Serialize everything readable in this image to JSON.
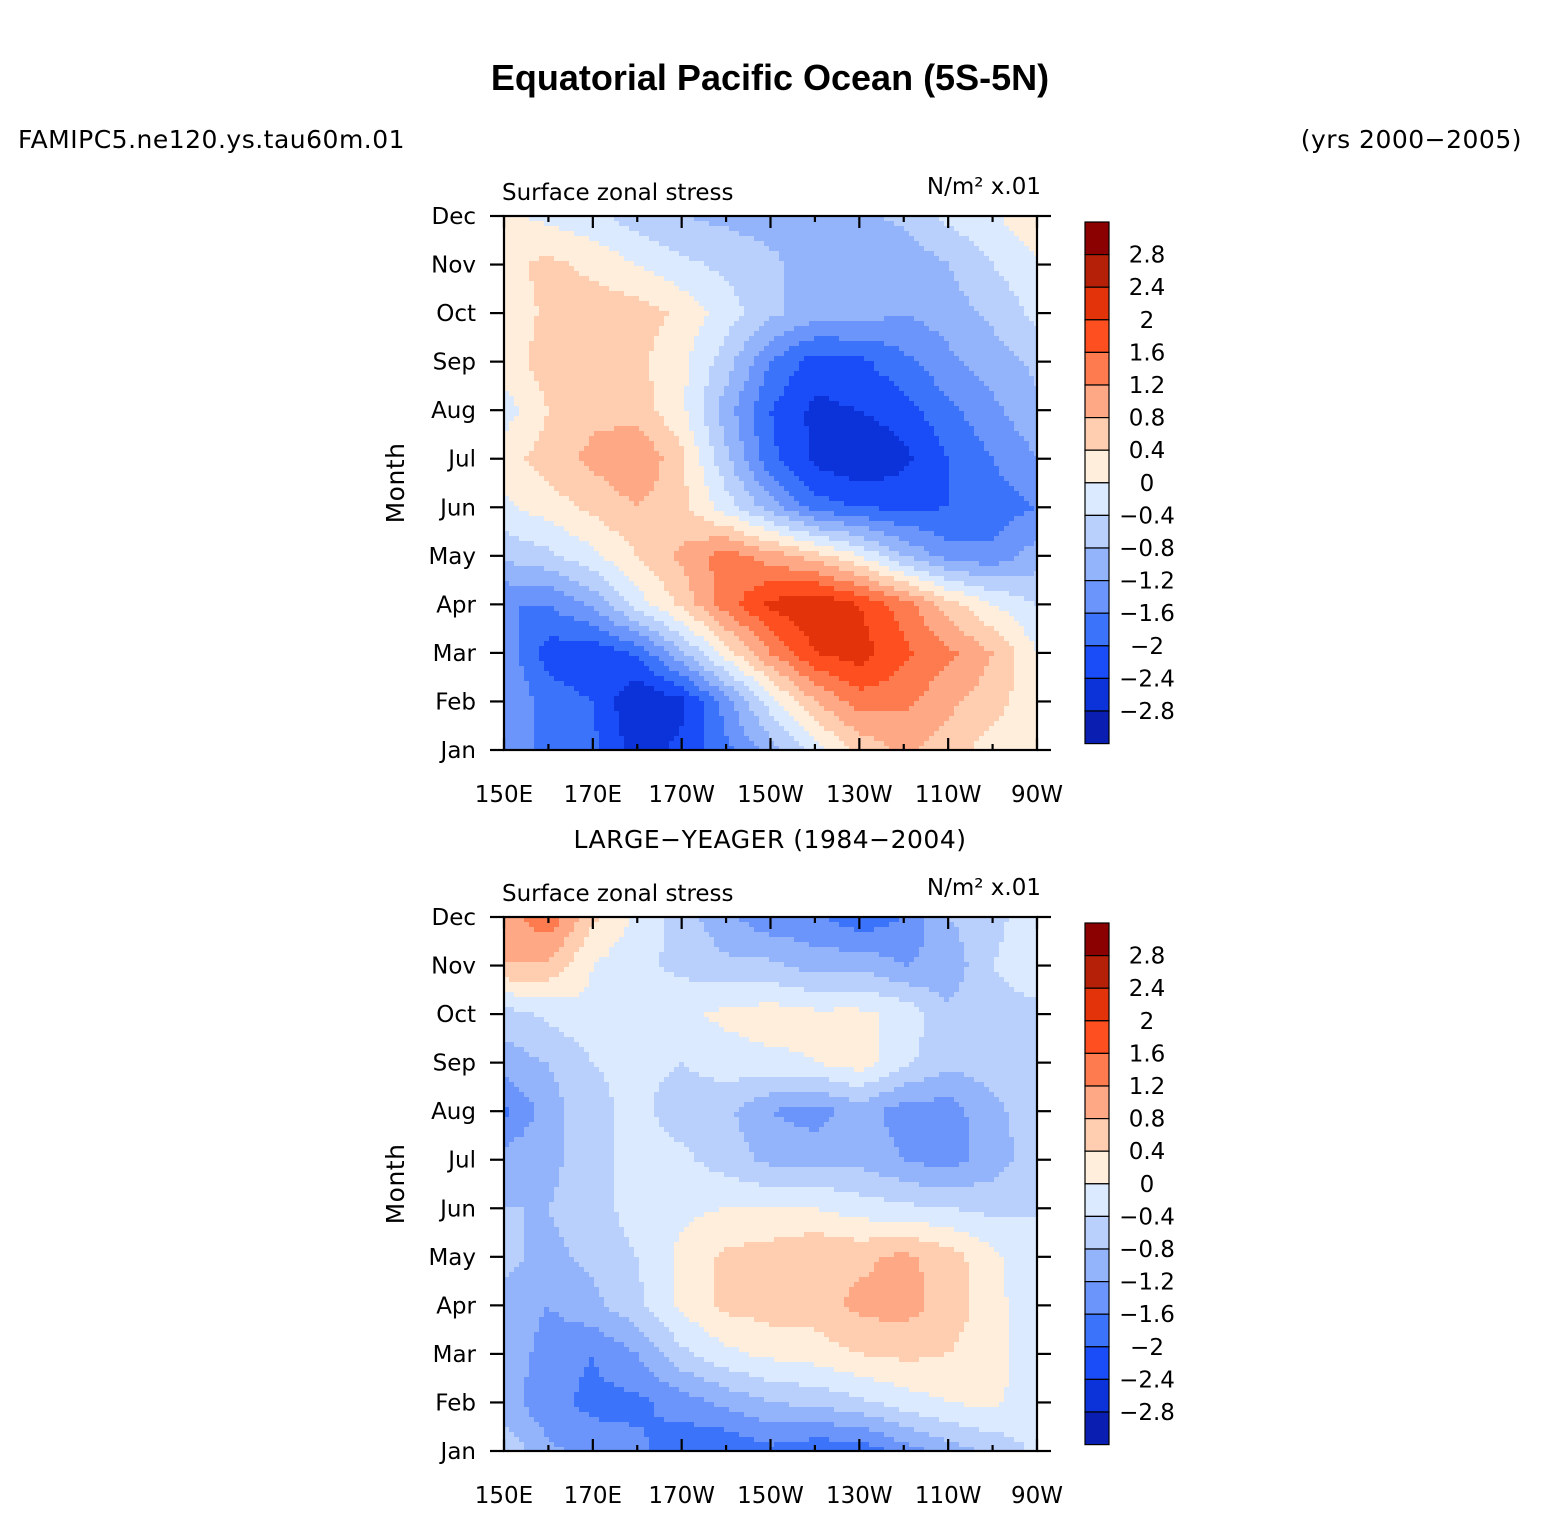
{
  "title": "Equatorial Pacific Ocean (5S-5N)",
  "left_label": "FAMIPC5.ne120.ys.tau60m.01",
  "right_label": "(yrs 2000−2005)",
  "obs_title": "LARGE−YEAGER (1984−2004)",
  "colors": {
    "levels": [
      -2.8,
      -2.4,
      -2.0,
      -1.6,
      -1.2,
      -0.8,
      -0.4,
      0,
      0.4,
      0.8,
      1.2,
      1.6,
      2.0,
      2.4,
      2.8
    ],
    "fills": [
      "#00008b",
      "#0a1fb2",
      "#0b33d9",
      "#1a4cf7",
      "#3b73fb",
      "#6b95fb",
      "#93b4fb",
      "#b9d0fc",
      "#dceaff",
      "#ffeedc",
      "#ffcdb0",
      "#fea886",
      "#fe7b4f",
      "#fe4f20",
      "#e2330a",
      "#b52108",
      "#8b0000"
    ]
  },
  "chart_data": [
    {
      "type": "heatmap",
      "name": "model",
      "left_string": "Surface zonal stress",
      "right_string": "N/m² x.01",
      "ylabel": "Month",
      "x_ticks": [
        "150E",
        "170E",
        "170W",
        "150W",
        "130W",
        "110W",
        "90W"
      ],
      "y_ticks": [
        "Jan",
        "Feb",
        "Mar",
        "Apr",
        "May",
        "Jun",
        "Jul",
        "Aug",
        "Sep",
        "Oct",
        "Nov",
        "Dec"
      ],
      "colorbar_labels": [
        "2.8",
        "2.4",
        "2",
        "1.6",
        "1.2",
        "0.8",
        "0.4",
        "0",
        "−0.4",
        "−0.8",
        "−1.2",
        "−1.6",
        "−2",
        "−2.4",
        "−2.8"
      ],
      "x": [
        150,
        160,
        170,
        180,
        190,
        200,
        210,
        220,
        230,
        240,
        250,
        260,
        270
      ],
      "months": [
        "Jan",
        "Feb",
        "Mar",
        "Apr",
        "May",
        "Jun",
        "Jul",
        "Aug",
        "Sep",
        "Oct",
        "Nov",
        "Dec"
      ],
      "values": [
        [
          -1.0,
          -1.3,
          -1.5,
          -2.2,
          -1.9,
          -1.3,
          -0.6,
          0.2,
          0.9,
          1.3,
          1.0,
          0.6,
          0.4
        ],
        [
          -0.8,
          -1.4,
          -1.6,
          -2.4,
          -2.1,
          -1.0,
          0.2,
          1.2,
          1.8,
          1.7,
          1.3,
          1.0,
          0.5
        ],
        [
          -0.9,
          -1.8,
          -1.9,
          -1.5,
          -0.5,
          0.6,
          1.6,
          2.4,
          2.6,
          2.1,
          1.7,
          1.2,
          0.4
        ],
        [
          -1.2,
          -1.2,
          -0.7,
          0.2,
          0.9,
          1.8,
          2.5,
          2.8,
          2.4,
          1.8,
          1.0,
          0.4,
          0.0
        ],
        [
          -0.3,
          -0.1,
          0.3,
          0.8,
          1.3,
          1.8,
          1.4,
          1.0,
          0.4,
          -0.4,
          -1.0,
          -1.1,
          -0.6
        ],
        [
          0.3,
          0.6,
          0.9,
          1.2,
          0.9,
          0.2,
          -0.6,
          -1.4,
          -1.6,
          -1.7,
          -1.6,
          -1.4,
          -1.2
        ],
        [
          0.6,
          1.0,
          1.3,
          1.6,
          0.9,
          -0.3,
          -1.5,
          -2.1,
          -2.4,
          -2.1,
          -1.6,
          -1.2,
          -0.8
        ],
        [
          0.2,
          0.8,
          1.1,
          1.0,
          0.5,
          -0.6,
          -1.6,
          -2.1,
          -2.0,
          -1.8,
          -1.3,
          -0.9,
          -0.5
        ],
        [
          0.6,
          1.0,
          1.1,
          0.9,
          0.5,
          -0.2,
          -1.2,
          -1.8,
          -1.7,
          -1.3,
          -0.9,
          -0.6,
          -0.3
        ],
        [
          0.5,
          0.9,
          1.0,
          1.0,
          0.7,
          0.2,
          -0.3,
          -0.6,
          -0.6,
          -0.8,
          -0.6,
          -0.3,
          0.1
        ],
        [
          0.7,
          0.9,
          0.7,
          0.4,
          0.1,
          -0.1,
          -0.3,
          -0.6,
          -0.7,
          -0.7,
          -0.4,
          0.0,
          0.3
        ],
        [
          0.5,
          0.3,
          0.1,
          -0.2,
          -0.4,
          -0.5,
          -0.6,
          -0.6,
          -0.5,
          -0.3,
          0.1,
          0.3,
          0.8
        ]
      ],
      "colorbar_range": [
        -2.8,
        2.8
      ]
    },
    {
      "type": "heatmap",
      "name": "obs",
      "left_string": "Surface zonal stress",
      "right_string": "N/m² x.01",
      "ylabel": "Month",
      "x_ticks": [
        "150E",
        "170E",
        "170W",
        "150W",
        "130W",
        "110W",
        "90W"
      ],
      "y_ticks": [
        "Jan",
        "Feb",
        "Mar",
        "Apr",
        "May",
        "Jun",
        "Jul",
        "Aug",
        "Sep",
        "Oct",
        "Nov",
        "Dec"
      ],
      "colorbar_labels": [
        "2.8",
        "2.4",
        "2",
        "1.6",
        "1.2",
        "0.8",
        "0.4",
        "0",
        "−0.4",
        "−0.8",
        "−1.2",
        "−1.6",
        "−2",
        "−2.4",
        "−2.8"
      ],
      "x": [
        150,
        160,
        170,
        180,
        190,
        200,
        210,
        220,
        230,
        240,
        250,
        260,
        270
      ],
      "months": [
        "Jan",
        "Feb",
        "Mar",
        "Apr",
        "May",
        "Jun",
        "Jul",
        "Aug",
        "Sep",
        "Oct",
        "Nov",
        "Dec"
      ],
      "values": [
        [
          -0.1,
          -0.7,
          -1.0,
          -1.1,
          -1.5,
          -1.6,
          -1.3,
          -1.5,
          -1.5,
          -1.0,
          -0.6,
          -0.3,
          0.1
        ],
        [
          -0.6,
          -1.1,
          -1.3,
          -1.3,
          -1.0,
          -0.7,
          -0.4,
          -0.3,
          -0.1,
          0.2,
          0.4,
          0.5,
          0.1
        ],
        [
          -0.5,
          -1.0,
          -1.2,
          -0.8,
          -0.1,
          0.3,
          0.5,
          0.6,
          0.8,
          0.9,
          0.8,
          0.6,
          0.1
        ],
        [
          -0.5,
          -0.8,
          -0.5,
          -0.1,
          0.5,
          0.9,
          1.0,
          1.0,
          1.3,
          1.4,
          1.0,
          0.6,
          0.0
        ],
        [
          -0.3,
          -0.5,
          -0.3,
          0.0,
          0.5,
          0.9,
          1.0,
          1.2,
          1.1,
          1.3,
          1.0,
          0.5,
          0.0
        ],
        [
          -0.4,
          -0.4,
          -0.2,
          0.2,
          0.3,
          0.4,
          0.4,
          0.4,
          0.2,
          0.1,
          0.0,
          -0.1,
          0.0
        ],
        [
          -0.6,
          -0.5,
          -0.2,
          0.2,
          0.1,
          -0.2,
          -0.5,
          -0.5,
          -0.5,
          -0.8,
          -1.0,
          -0.6,
          -0.2
        ],
        [
          -1.3,
          -0.6,
          -0.1,
          0.1,
          -0.2,
          -0.3,
          -0.8,
          -1.0,
          -0.6,
          -1.0,
          -1.0,
          -0.5,
          -0.2
        ],
        [
          -0.6,
          -0.4,
          0.0,
          0.1,
          0.0,
          0.2,
          0.3,
          0.4,
          0.6,
          0.1,
          -0.3,
          -0.2,
          -0.1
        ],
        [
          -0.2,
          0.1,
          0.3,
          0.2,
          0.3,
          0.5,
          0.6,
          0.5,
          0.5,
          0.3,
          -0.3,
          -0.1,
          -0.1
        ],
        [
          1.2,
          1.1,
          0.4,
          0.1,
          -0.1,
          -0.3,
          -0.3,
          -0.6,
          -0.5,
          -0.8,
          -0.7,
          0.0,
          0.2
        ],
        [
          1.4,
          1.9,
          0.9,
          0.3,
          -0.2,
          -0.7,
          -1.1,
          -1.1,
          -1.5,
          -1.2,
          -0.4,
          -0.1,
          0.2
        ]
      ],
      "colorbar_range": [
        -2.8,
        2.8
      ]
    }
  ]
}
